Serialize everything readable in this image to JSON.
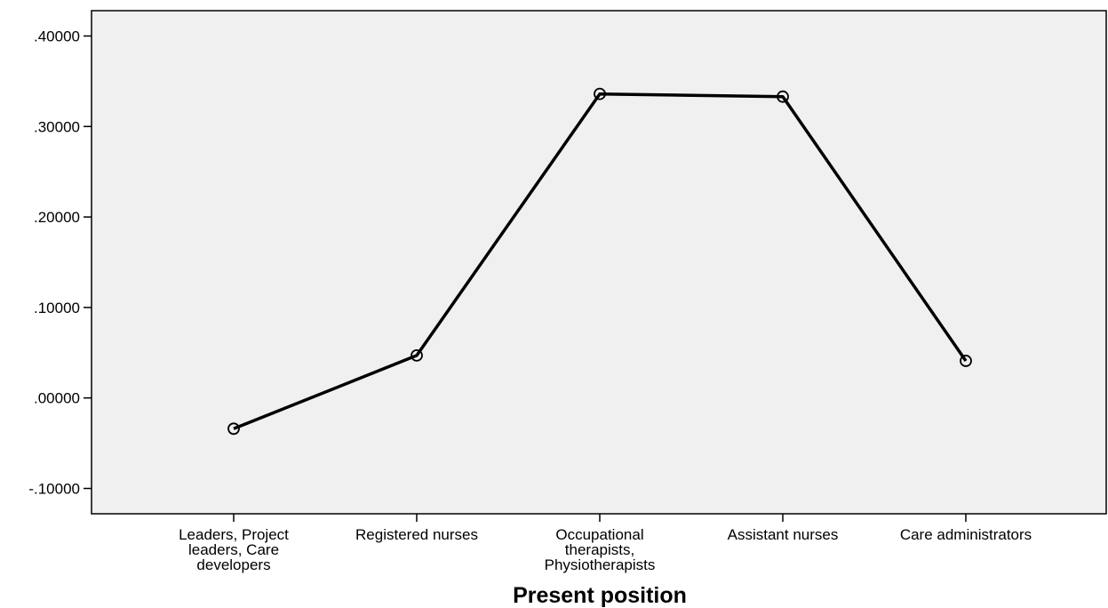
{
  "chart_data": {
    "type": "line",
    "title": "",
    "xlabel": "Present position",
    "ylabel": "",
    "categories": [
      "Leaders, Project leaders, Care developers",
      "Registered nurses",
      "Occupational therapists, Physiotherapists",
      "Assistant nurses",
      "Care administrators"
    ],
    "category_lines": [
      [
        "Leaders, Project",
        "leaders, Care",
        "developers"
      ],
      [
        "Registered nurses"
      ],
      [
        "Occupational",
        "therapists,",
        "Physiotherapists"
      ],
      [
        "Assistant nurses"
      ],
      [
        "Care administrators"
      ]
    ],
    "values": [
      -0.034,
      0.047,
      0.336,
      0.333,
      0.041
    ],
    "ylim": [
      -0.128,
      0.428
    ],
    "yticks": [
      -0.1,
      0.0,
      0.1,
      0.2,
      0.3,
      0.4
    ],
    "ytick_labels": [
      "-.10000",
      ".00000",
      ".10000",
      ".20000",
      ".30000",
      ".40000"
    ],
    "grid": false,
    "marker": "open-circle",
    "colors": {
      "plot_background": "#f0f0f0",
      "line": "#000000",
      "axis": "#000000"
    }
  }
}
